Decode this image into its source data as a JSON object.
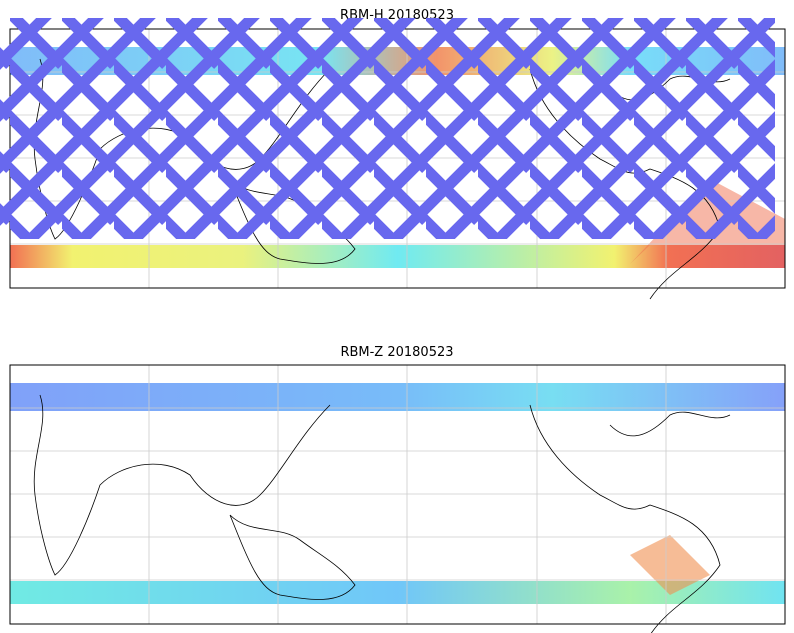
{
  "panels": [
    {
      "title": "RBM-H 20180523"
    },
    {
      "title": "RBM-Z 20180523"
    }
  ]
}
